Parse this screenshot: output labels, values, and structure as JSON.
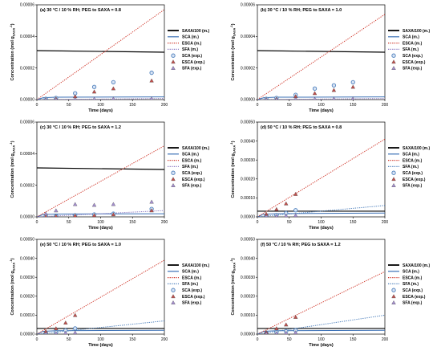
{
  "chart_data": [
    {
      "type": "line",
      "title": "(a)  30 °C / 10 % RH; PEG to SAXA = 0.8",
      "xlabel": "Time (days)",
      "ylabel": "Concentration (mol g",
      "ylabel_sub": "SAXA",
      "ylabel_sup": "-1",
      "ylabel_end": ")",
      "xlim": [
        0,
        200
      ],
      "ylim": [
        0,
        6e-05
      ],
      "xticks": [
        "0",
        "50",
        "100",
        "150",
        "200"
      ],
      "yticks": [
        "0.00000",
        "0.00002",
        "0.00004",
        "0.00006"
      ],
      "legend": [
        "SAXA/100 (m.)",
        "SCA (m.)",
        "ESCA (m.)",
        "SFA (m.)",
        "SCA (exp.)",
        "ESCA (exp.)",
        "SFA (exp.)"
      ],
      "series": [
        {
          "name": "SAXA/100 (m.)",
          "kind": "line",
          "color": "#000000",
          "x": [
            0,
            200
          ],
          "y": [
            3.1e-05,
            3e-05
          ]
        },
        {
          "name": "SCA (m.)",
          "kind": "line",
          "color": "#3a6fb5",
          "x": [
            0,
            10,
            30,
            200
          ],
          "y": [
            0,
            1.2e-06,
            1.5e-06,
            1.7e-06
          ]
        },
        {
          "name": "ESCA (m.)",
          "kind": "dotted",
          "color": "#d13b2f",
          "x": [
            0,
            200
          ],
          "y": [
            0,
            5.7e-05
          ]
        },
        {
          "name": "SFA (m.)",
          "kind": "dotted",
          "color": "#8e7cc3",
          "x": [
            0,
            200
          ],
          "y": [
            0,
            7e-07
          ]
        },
        {
          "name": "SCA (exp.)",
          "kind": "circle",
          "color": "#4f81bd",
          "x": [
            14,
            30,
            60,
            90,
            120,
            180
          ],
          "y": [
            5e-07,
            1e-06,
            4e-06,
            8e-06,
            1.1e-05,
            1.7e-05
          ]
        },
        {
          "name": "ESCA (exp.)",
          "kind": "triangle",
          "color": "#c0504d",
          "x": [
            14,
            30,
            60,
            90,
            120,
            180
          ],
          "y": [
            2e-07,
            6e-07,
            2e-06,
            5e-06,
            7e-06,
            1.2e-05
          ]
        },
        {
          "name": "SFA (exp.)",
          "kind": "triangle",
          "color": "#a58fd0",
          "x": [
            14,
            30,
            60,
            90,
            120,
            180
          ],
          "y": [
            1e-07,
            2e-07,
            3e-07,
            4e-07,
            5e-07,
            6e-07
          ]
        }
      ]
    },
    {
      "type": "line",
      "title": "(b)  30 °C / 10 % RH; PEG to SAXA = 1.0",
      "xlabel": "Time (days)",
      "ylabel": "Concentration (mol g",
      "ylabel_sub": "SAXA",
      "ylabel_sup": "-1",
      "ylabel_end": ")",
      "xlim": [
        0,
        200
      ],
      "ylim": [
        0,
        6e-05
      ],
      "xticks": [
        "0",
        "50",
        "100",
        "150",
        "200"
      ],
      "yticks": [
        "0.00000",
        "0.00002",
        "0.00004",
        "0.00006"
      ],
      "legend": [
        "SAXA/100 (m.)",
        "SCA (m.)",
        "ESCA (m.)",
        "SFA (m.)",
        "SCA (exp.)",
        "ESCA (exp.)",
        "SFA (exp.)"
      ],
      "series": [
        {
          "name": "SAXA/100 (m.)",
          "kind": "line",
          "color": "#000000",
          "x": [
            0,
            200
          ],
          "y": [
            3.1e-05,
            3e-05
          ]
        },
        {
          "name": "SCA (m.)",
          "kind": "line",
          "color": "#3a6fb5",
          "x": [
            0,
            10,
            30,
            200
          ],
          "y": [
            0,
            1.2e-06,
            1.5e-06,
            1.7e-06
          ]
        },
        {
          "name": "ESCA (m.)",
          "kind": "dotted",
          "color": "#d13b2f",
          "x": [
            0,
            200
          ],
          "y": [
            0,
            5.4e-05
          ]
        },
        {
          "name": "SFA (m.)",
          "kind": "dotted",
          "color": "#8e7cc3",
          "x": [
            0,
            200
          ],
          "y": [
            0,
            7e-07
          ]
        },
        {
          "name": "SCA (exp.)",
          "kind": "circle",
          "color": "#4f81bd",
          "x": [
            14,
            30,
            60,
            90,
            120,
            150
          ],
          "y": [
            5e-07,
            1e-06,
            3e-06,
            7e-06,
            9e-06,
            1.1e-05
          ]
        },
        {
          "name": "ESCA (exp.)",
          "kind": "triangle",
          "color": "#c0504d",
          "x": [
            14,
            30,
            60,
            90,
            120,
            150
          ],
          "y": [
            2e-07,
            5e-07,
            2e-06,
            4e-06,
            6e-06,
            8e-06
          ]
        },
        {
          "name": "SFA (exp.)",
          "kind": "triangle",
          "color": "#a58fd0",
          "x": [
            14,
            30,
            60,
            90,
            120,
            150
          ],
          "y": [
            1e-07,
            2e-07,
            3e-07,
            4e-07,
            5e-07,
            6e-07
          ]
        }
      ]
    },
    {
      "type": "line",
      "title": "(c)  30 °C / 10 % RH; PEG to SAXA = 1.2",
      "xlabel": "Time (days)",
      "ylabel": "Concentration (mol g",
      "ylabel_sub": "SAXA",
      "ylabel_sup": "-1",
      "ylabel_end": ")",
      "xlim": [
        0,
        200
      ],
      "ylim": [
        0,
        6e-05
      ],
      "xticks": [
        "0",
        "50",
        "100",
        "150",
        "200"
      ],
      "yticks": [
        "0.00000",
        "0.00002",
        "0.00004",
        "0.00006"
      ],
      "legend": [
        "SAXA/100 (m.)",
        "SCA (m.)",
        "ESCA (m.)",
        "SFA (m.)",
        "SCA (exp.)",
        "ESCA (exp.)",
        "SFA (exp.)"
      ],
      "series": [
        {
          "name": "SAXA/100 (m.)",
          "kind": "line",
          "color": "#000000",
          "x": [
            0,
            200
          ],
          "y": [
            3.1e-05,
            3e-05
          ]
        },
        {
          "name": "SCA (m.)",
          "kind": "line",
          "color": "#3a6fb5",
          "x": [
            0,
            10,
            30,
            200
          ],
          "y": [
            0,
            1.5e-06,
            1.8e-06,
            2e-06
          ]
        },
        {
          "name": "ESCA (m.)",
          "kind": "dotted",
          "color": "#d13b2f",
          "x": [
            0,
            200
          ],
          "y": [
            0,
            4.5e-05
          ]
        },
        {
          "name": "SFA (m.)",
          "kind": "dotted",
          "color": "#8e7cc3",
          "x": [
            0,
            200
          ],
          "y": [
            0,
            4e-06
          ]
        },
        {
          "name": "SCA (exp.)",
          "kind": "circle",
          "color": "#4f81bd",
          "x": [
            14,
            30,
            60,
            90,
            120,
            180
          ],
          "y": [
            3e-07,
            5e-07,
            1e-06,
            1.5e-06,
            2e-06,
            5e-06
          ]
        },
        {
          "name": "ESCA (exp.)",
          "kind": "triangle",
          "color": "#c0504d",
          "x": [
            14,
            30,
            60,
            90,
            120,
            180
          ],
          "y": [
            2e-07,
            4e-07,
            8e-07,
            1e-06,
            1.5e-06,
            4e-06
          ]
        },
        {
          "name": "SFA (exp.)",
          "kind": "triangle",
          "color": "#a58fd0",
          "x": [
            14,
            30,
            60,
            90,
            120,
            180
          ],
          "y": [
            2e-06,
            4e-06,
            8e-06,
            7.5e-06,
            8e-06,
            9.5e-06
          ]
        }
      ]
    },
    {
      "type": "line",
      "title": "(d)  50 °C / 10 % RH; PEG to SAXA = 0.8",
      "xlabel": "Time (days)",
      "ylabel": "Concentration (mol g",
      "ylabel_sub": "SAXA",
      "ylabel_sup": "-1",
      "ylabel_end": ")",
      "xlim": [
        0,
        200
      ],
      "ylim": [
        0,
        0.0005
      ],
      "xticks": [
        "0",
        "50",
        "100",
        "150",
        "200"
      ],
      "yticks": [
        "0.00000",
        "0.00010",
        "0.00020",
        "0.00030",
        "0.00040",
        "0.00050"
      ],
      "legend": [
        "SAXA/100 (m.)",
        "SCA (m.)",
        "ESCA (m.)",
        "SFA (m.)",
        "SCA (exp.)",
        "ESCA (exp.)",
        "SFA (exp.)"
      ],
      "series": [
        {
          "name": "SAXA/100 (m.)",
          "kind": "line",
          "color": "#000000",
          "x": [
            0,
            200
          ],
          "y": [
            3e-05,
            3e-05
          ]
        },
        {
          "name": "SCA (m.)",
          "kind": "line",
          "color": "#3a6fb5",
          "x": [
            0,
            10,
            30,
            200
          ],
          "y": [
            0,
            1.4e-05,
            1.7e-05,
            2e-05
          ]
        },
        {
          "name": "ESCA (m.)",
          "kind": "dotted",
          "color": "#d13b2f",
          "x": [
            0,
            200
          ],
          "y": [
            0,
            0.00041
          ]
        },
        {
          "name": "SFA (m.)",
          "kind": "dotted",
          "color": "#4f81bd",
          "x": [
            0,
            200
          ],
          "y": [
            0,
            6e-05
          ]
        },
        {
          "name": "SCA (exp.)",
          "kind": "circle",
          "color": "#4f81bd",
          "x": [
            14,
            30,
            45,
            60
          ],
          "y": [
            5e-06,
            1e-05,
            2e-05,
            3.5e-05
          ]
        },
        {
          "name": "ESCA (exp.)",
          "kind": "triangle",
          "color": "#c0504d",
          "x": [
            14,
            30,
            45,
            60
          ],
          "y": [
            1.5e-05,
            4e-05,
            7e-05,
            0.00012
          ]
        },
        {
          "name": "SFA (exp.)",
          "kind": "triangle",
          "color": "#a58fd0",
          "x": [
            14,
            30,
            45,
            60
          ],
          "y": [
            2e-06,
            4e-06,
            6e-06,
            8e-06
          ]
        }
      ]
    },
    {
      "type": "line",
      "title": "(e)  50 °C / 10 % RH; PEG to SAXA = 1.0",
      "xlabel": "Time (days)",
      "ylabel": "Concentration (mol g",
      "ylabel_sub": "SAXA",
      "ylabel_sup": "-1",
      "ylabel_end": ")",
      "xlim": [
        0,
        200
      ],
      "ylim": [
        0,
        0.0005
      ],
      "xticks": [
        "0",
        "50",
        "100",
        "150",
        "200"
      ],
      "yticks": [
        "0.00000",
        "0.00010",
        "0.00020",
        "0.00030",
        "0.00040",
        "0.00050"
      ],
      "legend": [
        "SAXA/100 (m.)",
        "SCA (m.)",
        "ESCA (m.)",
        "SFA (m.)",
        "SCA (exp.)",
        "ESCA (exp.)",
        "SFA (exp.)"
      ],
      "series": [
        {
          "name": "SAXA/100 (m.)",
          "kind": "line",
          "color": "#000000",
          "x": [
            0,
            200
          ],
          "y": [
            3e-05,
            3e-05
          ]
        },
        {
          "name": "SCA (m.)",
          "kind": "line",
          "color": "#3a6fb5",
          "x": [
            0,
            10,
            30,
            200
          ],
          "y": [
            0,
            1.5e-05,
            1.8e-05,
            2e-05
          ]
        },
        {
          "name": "ESCA (m.)",
          "kind": "dotted",
          "color": "#d13b2f",
          "x": [
            0,
            200
          ],
          "y": [
            0,
            0.00039
          ]
        },
        {
          "name": "SFA (m.)",
          "kind": "dotted",
          "color": "#4f81bd",
          "x": [
            0,
            200
          ],
          "y": [
            0,
            7e-05
          ]
        },
        {
          "name": "SCA (exp.)",
          "kind": "circle",
          "color": "#4f81bd",
          "x": [
            14,
            30,
            45,
            60
          ],
          "y": [
            5e-06,
            1e-05,
            2e-05,
            3e-05
          ]
        },
        {
          "name": "ESCA (exp.)",
          "kind": "triangle",
          "color": "#c0504d",
          "x": [
            14,
            30,
            45,
            60
          ],
          "y": [
            1.5e-05,
            3e-05,
            6e-05,
            0.0001
          ]
        },
        {
          "name": "SFA (exp.)",
          "kind": "triangle",
          "color": "#a58fd0",
          "x": [
            14,
            30,
            45,
            60
          ],
          "y": [
            2e-06,
            4e-06,
            6e-06,
            8e-06
          ]
        }
      ]
    },
    {
      "type": "line",
      "title": "(f)  50 °C / 10 % RH; PEG to SAXA = 1.2",
      "xlabel": "Time (days)",
      "ylabel": "Concentration (mol g",
      "ylabel_sub": "SAXA",
      "ylabel_sup": "-1",
      "ylabel_end": ")",
      "xlim": [
        0,
        200
      ],
      "ylim": [
        0,
        0.0005
      ],
      "xticks": [
        "0",
        "50",
        "100",
        "150",
        "200"
      ],
      "yticks": [
        "0.00000",
        "0.00010",
        "0.00020",
        "0.00030",
        "0.00040",
        "0.00050"
      ],
      "legend": [
        "SAXA/100 (m.)",
        "SCA (m.)",
        "ESCA (m.)",
        "SFA (m.)",
        "SCA (exp.)",
        "ESCA (exp.)",
        "SFA (exp.)"
      ],
      "series": [
        {
          "name": "SAXA/100 (m.)",
          "kind": "line",
          "color": "#000000",
          "x": [
            0,
            200
          ],
          "y": [
            3e-05,
            3e-05
          ]
        },
        {
          "name": "SCA (m.)",
          "kind": "line",
          "color": "#3a6fb5",
          "x": [
            0,
            10,
            30,
            200
          ],
          "y": [
            0,
            1.5e-05,
            1.8e-05,
            2e-05
          ]
        },
        {
          "name": "ESCA (m.)",
          "kind": "dotted",
          "color": "#d13b2f",
          "x": [
            0,
            200
          ],
          "y": [
            0,
            0.00033
          ]
        },
        {
          "name": "SFA (m.)",
          "kind": "dotted",
          "color": "#4f81bd",
          "x": [
            0,
            200
          ],
          "y": [
            0,
            0.0001
          ]
        },
        {
          "name": "SCA (exp.)",
          "kind": "circle",
          "color": "#4f81bd",
          "x": [
            14,
            30,
            45,
            60
          ],
          "y": [
            5e-06,
            1e-05,
            1.5e-05,
            2e-05
          ]
        },
        {
          "name": "ESCA (exp.)",
          "kind": "triangle",
          "color": "#c0504d",
          "x": [
            14,
            30,
            45,
            60
          ],
          "y": [
            1e-05,
            3e-05,
            5e-05,
            9e-05
          ]
        },
        {
          "name": "SFA (exp.)",
          "kind": "triangle",
          "color": "#a58fd0",
          "x": [
            14,
            30,
            45,
            60
          ],
          "y": [
            2e-06,
            4e-06,
            6e-06,
            8e-06
          ]
        }
      ]
    }
  ]
}
